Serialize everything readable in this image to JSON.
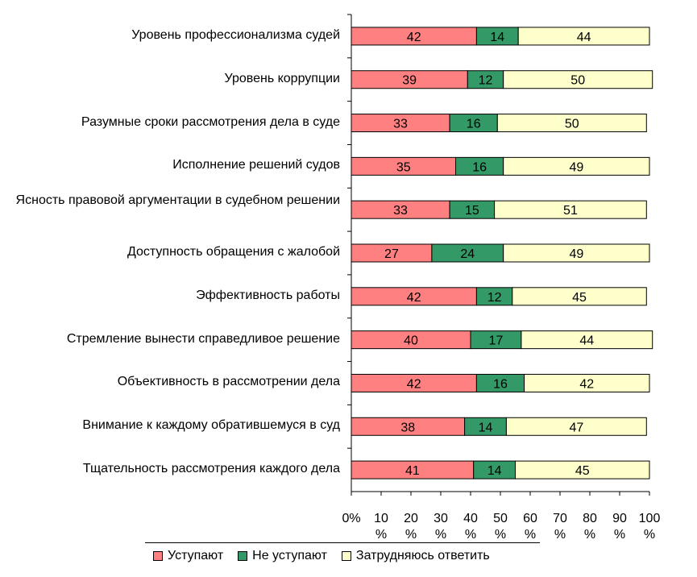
{
  "chart_data": {
    "type": "bar",
    "orientation": "horizontal",
    "stacked": true,
    "categories": [
      "Уровень профессионализма судей",
      "Уровень коррупции",
      "Разумные сроки рассмотрения дела в суде",
      "Исполнение решений судов",
      "Ясность правовой аргументации в судебном решении",
      "Доступность обращения с жалобой",
      "Эффективность работы",
      "Стремление вынести справедливое решение",
      "Объективность в рассмотрении дела",
      "Внимание к каждому обратившемуся в суд",
      "Тщательность рассмотрения каждого дела"
    ],
    "series": [
      {
        "name": "Уступают",
        "color": "#ff8080",
        "values": [
          42,
          39,
          33,
          35,
          33,
          27,
          42,
          40,
          42,
          38,
          41
        ]
      },
      {
        "name": "Не уступают",
        "color": "#339966",
        "values": [
          14,
          12,
          16,
          16,
          15,
          24,
          12,
          17,
          16,
          14,
          14
        ]
      },
      {
        "name": "Затрудняюсь ответить",
        "color": "#ffffcc",
        "values": [
          44,
          50,
          50,
          49,
          51,
          49,
          45,
          44,
          42,
          47,
          45
        ]
      }
    ],
    "xlim": [
      0,
      100
    ],
    "xticks": [
      "0%",
      "10 %",
      "20 %",
      "30 %",
      "40 %",
      "50 %",
      "60 %",
      "70 %",
      "80 %",
      "90 %",
      "100 %"
    ],
    "grid": false,
    "legend_position": "bottom"
  }
}
